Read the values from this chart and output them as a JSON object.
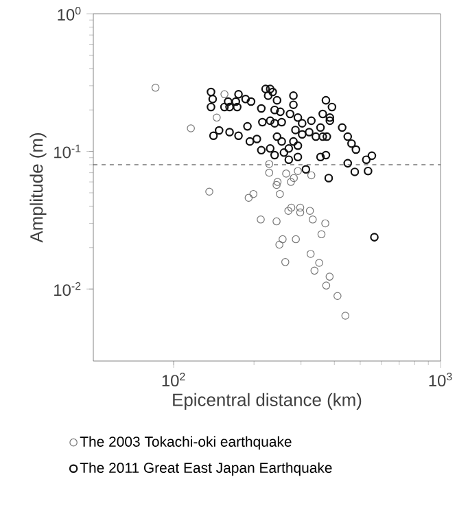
{
  "chart_data": {
    "type": "scatter",
    "xlabel": "Epicentral distance (km)",
    "ylabel": "Amplitude (m)",
    "log": "xy",
    "xlim": [
      50,
      1000
    ],
    "ylim": [
      0.003,
      1
    ],
    "xticks": [
      {
        "value": 100,
        "label": "10$^{2}$"
      },
      {
        "value": 1000,
        "label": "10$^{3}$"
      }
    ],
    "yticks": [
      {
        "value": 0.01,
        "label": "10$^{-2}$"
      },
      {
        "value": 0.1,
        "label": "10$^{-1}$"
      },
      {
        "value": 1,
        "label": "10$^{0}$"
      }
    ],
    "marker": "circle",
    "legend": "bottom",
    "ref_lines": [
      {
        "axis": "y",
        "value": 0.08,
        "line_style": "dashed"
      }
    ],
    "series": [
      {
        "name": "The 2003 Tokachi-oki earthquake",
        "color": "#777777",
        "x": [
          85.5,
          116,
          136,
          155,
          145,
          191,
          199,
          212,
          228,
          228,
          243,
          245,
          250,
          243,
          249,
          256,
          262,
          269,
          276,
          298,
          275,
          282,
          287,
          298,
          324,
          332,
          326,
          337,
          351,
          358,
          370,
          384,
          373,
          411,
          440,
          292,
          328,
          264
        ],
        "values": [
          0.29,
          0.147,
          0.051,
          0.26,
          0.176,
          0.046,
          0.049,
          0.032,
          0.081,
          0.07,
          0.057,
          0.06,
          0.049,
          0.031,
          0.021,
          0.023,
          0.0157,
          0.037,
          0.039,
          0.039,
          0.06,
          0.064,
          0.023,
          0.036,
          0.037,
          0.032,
          0.018,
          0.0136,
          0.0155,
          0.025,
          0.03,
          0.0123,
          0.0106,
          0.0089,
          0.0064,
          0.072,
          0.067,
          0.069
        ]
      },
      {
        "name": "The 2011 Great East Japan Earthquake",
        "color": "#111111",
        "x": [
          138,
          140,
          138,
          155,
          162,
          173,
          175,
          186,
          195,
          171,
          160,
          141,
          148,
          162,
          175,
          189,
          193,
          205,
          213,
          213,
          215,
          221,
          230,
          226,
          235,
          239,
          244,
          251,
          230,
          239,
          254,
          244,
          254,
          230,
          239,
          259,
          270,
          281,
          281,
          273,
          292,
          303,
          286,
          303,
          322,
          328,
          341,
          281,
          292,
          270,
          292,
          313,
          355,
          362,
          372,
          362,
          385,
          375,
          355,
          372,
          381,
          385,
          428,
          449,
          464,
          482,
          449,
          477,
          527,
          553,
          535,
          565,
          392
        ],
        "values": [
          0.27,
          0.24,
          0.21,
          0.21,
          0.21,
          0.21,
          0.26,
          0.24,
          0.23,
          0.23,
          0.23,
          0.13,
          0.142,
          0.138,
          0.13,
          0.152,
          0.118,
          0.123,
          0.102,
          0.205,
          0.163,
          0.284,
          0.284,
          0.254,
          0.27,
          0.2,
          0.235,
          0.194,
          0.167,
          0.16,
          0.163,
          0.128,
          0.118,
          0.105,
          0.094,
          0.098,
          0.105,
          0.254,
          0.218,
          0.187,
          0.176,
          0.16,
          0.143,
          0.133,
          0.138,
          0.167,
          0.128,
          0.118,
          0.11,
          0.087,
          0.091,
          0.074,
          0.149,
          0.187,
          0.235,
          0.128,
          0.167,
          0.128,
          0.091,
          0.094,
          0.064,
          0.176,
          0.149,
          0.128,
          0.114,
          0.103,
          0.082,
          0.071,
          0.087,
          0.093,
          0.072,
          0.0238,
          0.21
        ]
      }
    ]
  }
}
